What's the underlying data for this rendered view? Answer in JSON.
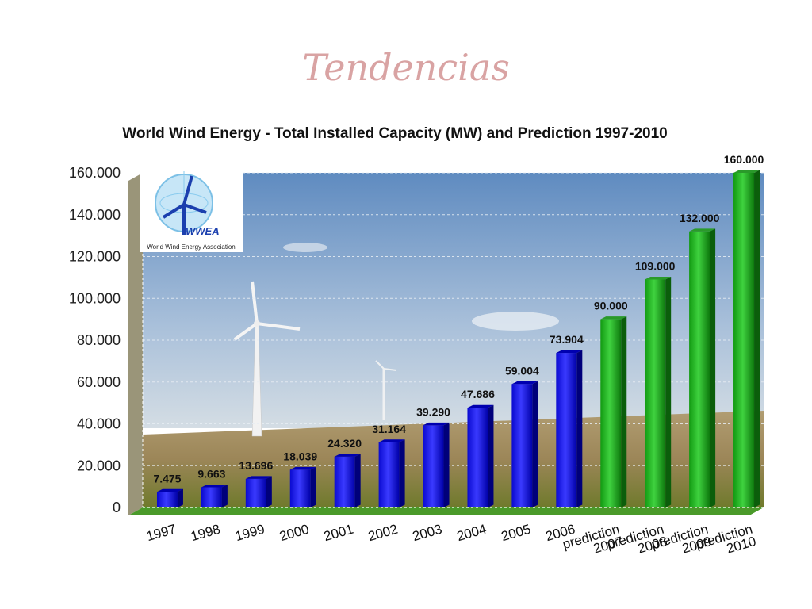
{
  "slide": {
    "title": "Tendencias"
  },
  "logo": {
    "text": "World Wind Energy Association",
    "abbr": "WWEA"
  },
  "chart_data": {
    "type": "bar",
    "title": "World Wind Energy - Total Installed Capacity (MW) and Prediction 1997-2010",
    "categories": [
      "1997",
      "1998",
      "1999",
      "2000",
      "2001",
      "2002",
      "2003",
      "2004",
      "2005",
      "2006",
      "prediction 2007",
      "prediction 2008",
      "prediction 2009",
      "prediction 2010"
    ],
    "values": [
      7475,
      9663,
      13696,
      18039,
      24320,
      31164,
      39290,
      47686,
      59004,
      73904,
      90000,
      109000,
      132000,
      160000
    ],
    "value_labels": [
      "7.475",
      "9.663",
      "13.696",
      "18.039",
      "24.320",
      "31.164",
      "39.290",
      "47.686",
      "59.004",
      "73.904",
      "90.000",
      "109.000",
      "132.000",
      "160.000"
    ],
    "yticks": [
      0,
      20000,
      40000,
      60000,
      80000,
      100000,
      120000,
      140000,
      160000
    ],
    "ytick_labels": [
      "0",
      "20.000",
      "40.000",
      "60.000",
      "80.000",
      "100.000",
      "120.000",
      "140.000",
      "160.000"
    ],
    "ylim": [
      0,
      160000
    ],
    "xlabel": "",
    "ylabel": "",
    "grid": true,
    "legend": "none",
    "colors": {
      "actual": "#1010e0",
      "prediction": "#22b022",
      "sky_top": "#6d94c4",
      "sky_bottom": "#c6d6e6",
      "field": "#a48d5e",
      "grass": "#5f7a26"
    }
  }
}
